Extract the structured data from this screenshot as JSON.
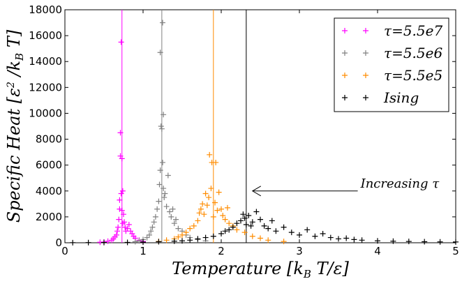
{
  "chart_data": {
    "type": "scatter",
    "xlabel": "Temperature [k_B T/ε]",
    "ylabel": "Specific Heat [ε²/k_B T]",
    "xlim": [
      0,
      5
    ],
    "ylim": [
      0,
      18000
    ],
    "x_ticks": [
      "0",
      "1",
      "2",
      "3",
      "4",
      "5"
    ],
    "y_ticks": [
      "0",
      "2000",
      "4000",
      "6000",
      "8000",
      "10000",
      "12000",
      "14000",
      "16000",
      "18000"
    ],
    "legend_position": "top-right",
    "annotation": {
      "text": "Increasing τ",
      "arrow_to": [
        2.4,
        4000
      ],
      "text_at": [
        3.8,
        4000
      ]
    },
    "series": [
      {
        "name": "τ=5.5e7",
        "color": "#ff00ff",
        "marker": "+",
        "vline": 0.73,
        "points": [
          [
            0.45,
            40
          ],
          [
            0.5,
            60
          ],
          [
            0.55,
            120
          ],
          [
            0.6,
            200
          ],
          [
            0.62,
            300
          ],
          [
            0.64,
            450
          ],
          [
            0.66,
            600
          ],
          [
            0.67,
            900
          ],
          [
            0.68,
            1200
          ],
          [
            0.69,
            1800
          ],
          [
            0.7,
            2600
          ],
          [
            0.7,
            3300
          ],
          [
            0.71,
            6700
          ],
          [
            0.71,
            8500
          ],
          [
            0.72,
            15500
          ],
          [
            0.72,
            3800
          ],
          [
            0.73,
            6500
          ],
          [
            0.73,
            2500
          ],
          [
            0.74,
            4000
          ],
          [
            0.74,
            1500
          ],
          [
            0.75,
            2200
          ],
          [
            0.76,
            1600
          ],
          [
            0.77,
            1200
          ],
          [
            0.78,
            900
          ],
          [
            0.8,
            1100
          ],
          [
            0.82,
            1400
          ],
          [
            0.84,
            900
          ],
          [
            0.86,
            700
          ],
          [
            0.88,
            500
          ],
          [
            0.9,
            350
          ],
          [
            0.95,
            200
          ],
          [
            1.0,
            100
          ]
        ]
      },
      {
        "name": "τ=5.5e6",
        "color": "#808080",
        "marker": "+",
        "vline": 1.24,
        "points": [
          [
            0.9,
            80
          ],
          [
            0.95,
            150
          ],
          [
            1.0,
            250
          ],
          [
            1.05,
            400
          ],
          [
            1.08,
            600
          ],
          [
            1.1,
            900
          ],
          [
            1.12,
            1200
          ],
          [
            1.14,
            1600
          ],
          [
            1.16,
            2000
          ],
          [
            1.18,
            2600
          ],
          [
            1.2,
            3200
          ],
          [
            1.21,
            4500
          ],
          [
            1.22,
            5600
          ],
          [
            1.22,
            14700
          ],
          [
            1.23,
            9000
          ],
          [
            1.24,
            8800
          ],
          [
            1.25,
            17000
          ],
          [
            1.25,
            6200
          ],
          [
            1.26,
            9900
          ],
          [
            1.26,
            4200
          ],
          [
            1.27,
            3500
          ],
          [
            1.28,
            3800
          ],
          [
            1.3,
            2800
          ],
          [
            1.32,
            5200
          ],
          [
            1.34,
            2400
          ],
          [
            1.36,
            2000
          ],
          [
            1.38,
            2600
          ],
          [
            1.4,
            1500
          ],
          [
            1.42,
            1800
          ],
          [
            1.45,
            1100
          ],
          [
            1.5,
            900
          ],
          [
            1.55,
            600
          ],
          [
            1.6,
            400
          ],
          [
            1.7,
            250
          ],
          [
            1.8,
            150
          ]
        ]
      },
      {
        "name": "τ=5.5e5",
        "color": "#ff8c00",
        "marker": "+",
        "vline": 1.9,
        "points": [
          [
            1.2,
            100
          ],
          [
            1.3,
            200
          ],
          [
            1.4,
            300
          ],
          [
            1.45,
            450
          ],
          [
            1.5,
            600
          ],
          [
            1.55,
            800
          ],
          [
            1.6,
            1100
          ],
          [
            1.65,
            1300
          ],
          [
            1.7,
            1700
          ],
          [
            1.72,
            2300
          ],
          [
            1.74,
            2600
          ],
          [
            1.76,
            3000
          ],
          [
            1.78,
            2200
          ],
          [
            1.8,
            3800
          ],
          [
            1.82,
            2900
          ],
          [
            1.84,
            3500
          ],
          [
            1.85,
            6800
          ],
          [
            1.87,
            4200
          ],
          [
            1.88,
            6200
          ],
          [
            1.9,
            2000
          ],
          [
            1.92,
            3100
          ],
          [
            1.93,
            6200
          ],
          [
            1.95,
            2500
          ],
          [
            1.97,
            3900
          ],
          [
            2.0,
            2600
          ],
          [
            2.02,
            2100
          ],
          [
            2.05,
            1800
          ],
          [
            2.08,
            2700
          ],
          [
            2.1,
            1500
          ],
          [
            2.15,
            1300
          ],
          [
            2.2,
            1000
          ],
          [
            2.3,
            800
          ],
          [
            2.4,
            500
          ],
          [
            2.5,
            350
          ],
          [
            2.6,
            200
          ],
          [
            2.8,
            100
          ]
        ]
      },
      {
        "name": "Ising",
        "color": "#000000",
        "marker": "+",
        "vline": 2.32,
        "points": [
          [
            0.1,
            10
          ],
          [
            0.3,
            15
          ],
          [
            0.5,
            20
          ],
          [
            0.8,
            30
          ],
          [
            1.0,
            50
          ],
          [
            1.2,
            80
          ],
          [
            1.4,
            120
          ],
          [
            1.5,
            150
          ],
          [
            1.6,
            200
          ],
          [
            1.7,
            300
          ],
          [
            1.8,
            400
          ],
          [
            1.9,
            500
          ],
          [
            2.0,
            700
          ],
          [
            2.05,
            900
          ],
          [
            2.1,
            1000
          ],
          [
            2.15,
            1200
          ],
          [
            2.2,
            1500
          ],
          [
            2.25,
            1700
          ],
          [
            2.28,
            2200
          ],
          [
            2.3,
            1900
          ],
          [
            2.32,
            1400
          ],
          [
            2.35,
            2100
          ],
          [
            2.38,
            1300
          ],
          [
            2.4,
            1600
          ],
          [
            2.45,
            2400
          ],
          [
            2.5,
            1800
          ],
          [
            2.55,
            1300
          ],
          [
            2.6,
            1100
          ],
          [
            2.65,
            1700
          ],
          [
            2.7,
            900
          ],
          [
            2.8,
            1200
          ],
          [
            2.9,
            800
          ],
          [
            3.0,
            600
          ],
          [
            3.1,
            1000
          ],
          [
            3.2,
            500
          ],
          [
            3.3,
            700
          ],
          [
            3.4,
            400
          ],
          [
            3.5,
            300
          ],
          [
            3.6,
            350
          ],
          [
            3.7,
            250
          ],
          [
            3.8,
            200
          ],
          [
            4.0,
            150
          ],
          [
            4.2,
            120
          ],
          [
            4.4,
            100
          ],
          [
            4.6,
            80
          ],
          [
            4.8,
            70
          ],
          [
            5.0,
            60
          ]
        ]
      }
    ]
  }
}
